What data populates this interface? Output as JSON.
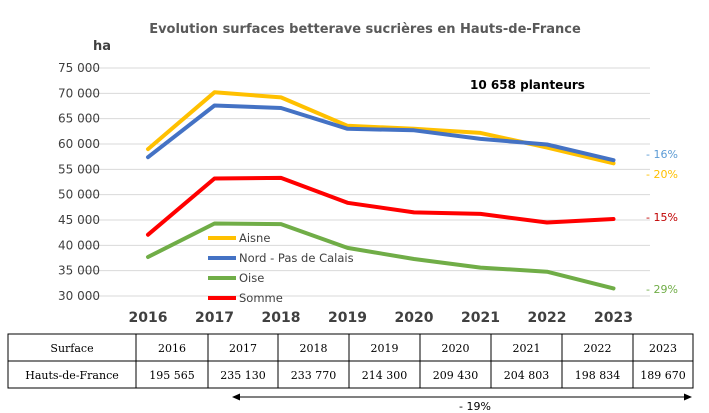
{
  "chart_data": {
    "type": "line",
    "title": "Evolution surfaces betterave sucrières en Hauts-de-France",
    "ylabel": "ha",
    "ylim": [
      30000,
      75000
    ],
    "yticks": [
      30000,
      35000,
      40000,
      45000,
      50000,
      55000,
      60000,
      65000,
      70000,
      75000
    ],
    "ytick_labels": [
      "30 000",
      "35 000",
      "40 000",
      "45 000",
      "50 000",
      "55 000",
      "60 000",
      "65 000",
      "70 000",
      "75 000"
    ],
    "x": [
      "2016",
      "2017",
      "2018",
      "2019",
      "2020",
      "2021",
      "2022",
      "2023"
    ],
    "grid": true,
    "legend_position": "center-left",
    "annotation": "10 658 planteurs",
    "series": [
      {
        "name": "Aisne",
        "color": "#FFC000",
        "values": [
          59000,
          70200,
          69200,
          63600,
          63000,
          62200,
          59300,
          56200
        ],
        "end_label": "- 20%"
      },
      {
        "name": "Nord - Pas de Calais",
        "color": "#4472C4",
        "values": [
          57400,
          67600,
          67100,
          63000,
          62700,
          61000,
          59900,
          56800
        ],
        "end_label": "- 16%",
        "end_label_color": "#5B9BD5"
      },
      {
        "name": "Oise",
        "color": "#70AD47",
        "values": [
          37700,
          44300,
          44200,
          39500,
          37300,
          35600,
          34800,
          31500
        ],
        "end_label": "- 29%"
      },
      {
        "name": "Somme",
        "color": "#FF0000",
        "values": [
          42100,
          53200,
          53300,
          48400,
          46500,
          46200,
          44500,
          45200
        ],
        "end_label": "- 15%",
        "end_label_color": "#C00000"
      }
    ]
  },
  "table": {
    "header_label": "Surface",
    "years": [
      "2016",
      "2017",
      "2018",
      "2019",
      "2020",
      "2021",
      "2022",
      "2023"
    ],
    "row_label": "Hauts-de-France",
    "values": [
      "195 565",
      "235 130",
      "233 770",
      "214 300",
      "209 430",
      "204 803",
      "198 834",
      "189 670"
    ]
  },
  "footer": {
    "change_label": "- 19%"
  }
}
